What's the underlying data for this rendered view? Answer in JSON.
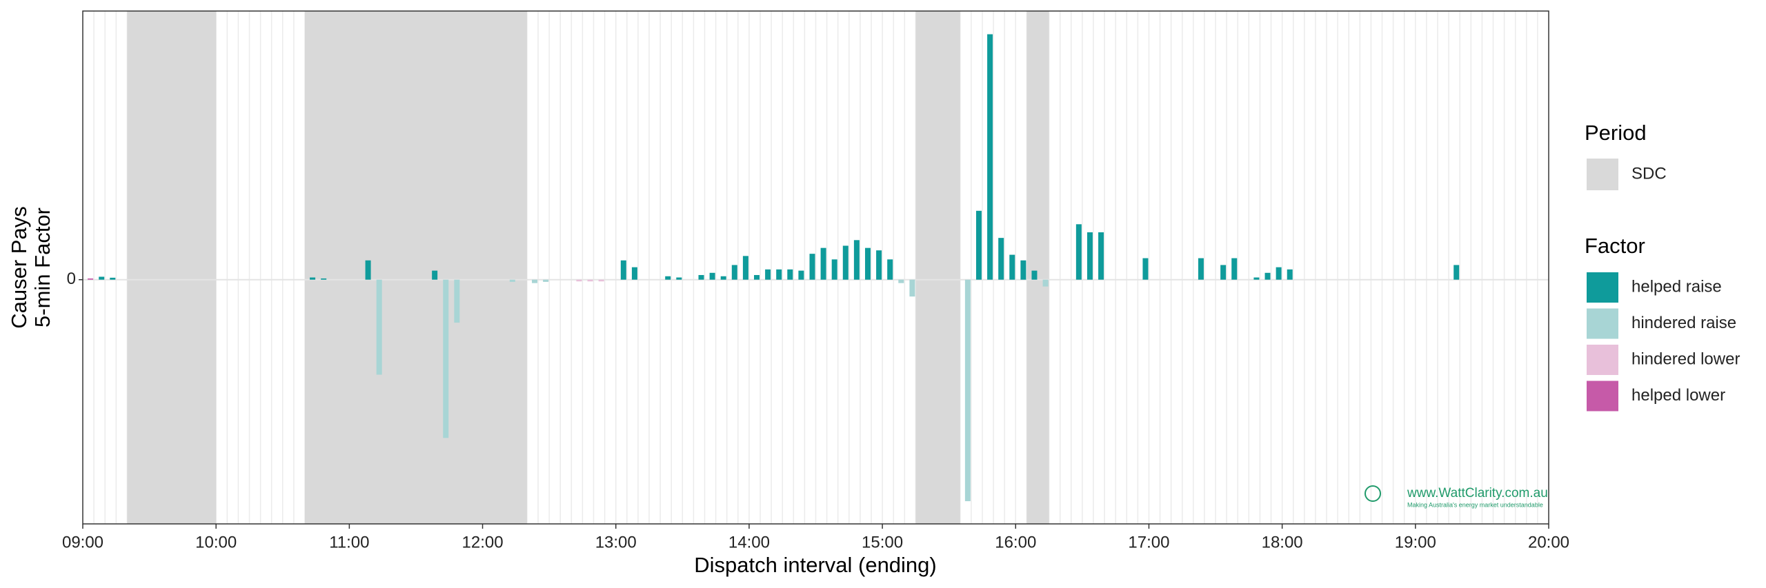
{
  "chart_data": {
    "type": "bar",
    "x_label": "Dispatch interval (ending)",
    "y_label": [
      "Causer Pays",
      "5-min Factor"
    ],
    "xlim": [
      "09:00",
      "20:00"
    ],
    "xticks": [
      "09:00",
      "10:00",
      "11:00",
      "12:00",
      "13:00",
      "14:00",
      "15:00",
      "16:00",
      "17:00",
      "18:00",
      "19:00",
      "20:00"
    ],
    "ylim": [
      -1,
      1.1
    ],
    "yticks": [
      0
    ],
    "grid": true,
    "legend_position": "right",
    "period_legend_title": "Period",
    "factor_legend_title": "Factor",
    "periods": {
      "name": "SDC",
      "color": "#d9d9d9",
      "spans": [
        [
          "09:20",
          "10:00"
        ],
        [
          "10:40",
          "12:20"
        ],
        [
          "15:15",
          "15:35"
        ],
        [
          "16:05",
          "16:15"
        ]
      ]
    },
    "series": [
      {
        "name": "helped raise",
        "color": "#0f9b9b",
        "x": [
          "09:10",
          "09:15",
          "10:45",
          "10:50",
          "11:10",
          "11:40",
          "13:05",
          "13:10",
          "13:25",
          "13:30",
          "13:40",
          "13:45",
          "13:50",
          "13:55",
          "14:00",
          "14:05",
          "14:10",
          "14:15",
          "14:20",
          "14:25",
          "14:30",
          "14:35",
          "14:40",
          "14:45",
          "14:50",
          "14:55",
          "15:00",
          "15:05",
          "15:45",
          "15:50",
          "15:55",
          "16:00",
          "16:05",
          "16:10",
          "16:30",
          "16:35",
          "16:40",
          "17:00",
          "17:25",
          "17:35",
          "17:40",
          "17:50",
          "17:55",
          "18:00",
          "18:05",
          "19:20"
        ],
        "values": [
          0.012,
          0.008,
          0.009,
          0.005,
          0.079,
          0.037,
          0.079,
          0.051,
          0.014,
          0.009,
          0.019,
          0.028,
          0.014,
          0.06,
          0.097,
          0.019,
          0.042,
          0.042,
          0.042,
          0.037,
          0.106,
          0.13,
          0.083,
          0.139,
          0.162,
          0.13,
          0.12,
          0.083,
          0.282,
          1.005,
          0.171,
          0.102,
          0.079,
          0.037,
          0.227,
          0.194,
          0.194,
          0.088,
          0.088,
          0.06,
          0.088,
          0.009,
          0.028,
          0.051,
          0.042,
          0.06
        ]
      },
      {
        "name": "hindered raise",
        "color": "#a8d5d5",
        "x": [
          "11:15",
          "11:45",
          "11:50",
          "12:15",
          "12:25",
          "12:30",
          "15:10",
          "15:15",
          "15:40",
          "16:15"
        ],
        "values": [
          -0.389,
          -0.648,
          -0.176,
          -0.009,
          -0.014,
          -0.009,
          -0.014,
          -0.069,
          -0.907,
          -0.028
        ]
      },
      {
        "name": "hindered lower",
        "color": "#e8c0da",
        "x": [
          "12:45",
          "12:50",
          "12:55"
        ],
        "values": [
          -0.007,
          -0.007,
          -0.007
        ]
      },
      {
        "name": "helped lower",
        "color": "#c65aa8",
        "x": [
          "09:05"
        ],
        "values": [
          0.005
        ]
      }
    ],
    "watermark": "www.WattClarity.com.au",
    "watermark_tagline": "Making Australia's energy market understandable"
  }
}
